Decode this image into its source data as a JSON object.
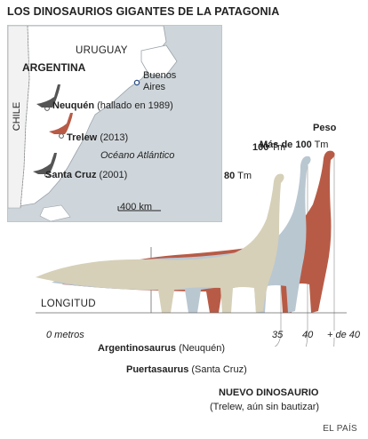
{
  "title": "LOS DINOSAURIOS GIGANTES DE LA PATAGONIA",
  "map": {
    "labels": {
      "uruguay": "URUGUAY",
      "argentina": "ARGENTINA",
      "buenos_aires_1": "Buenos",
      "buenos_aires_2": "Aires",
      "chile": "CHILE",
      "neuquen": "Neuquén",
      "neuquen_note": "(hallado en 1989)",
      "trelew": "Trelew",
      "trelew_note": "(2013)",
      "ocean_1": "Océano",
      "ocean_2": "Atlántico",
      "santa_cruz": "Santa Cruz",
      "santa_cruz_note": "(2001)",
      "scale": "400 km"
    }
  },
  "weights": {
    "header": "Peso",
    "max_prefix": "Más de",
    "max_value": "100",
    "max_unit": "Tm",
    "mid_value": "100",
    "mid_unit": "Tm",
    "low_value": "80",
    "low_unit": "Tm"
  },
  "length": {
    "label": "LONGITUD",
    "zero": "0 metros",
    "v35": "35",
    "v40": "40",
    "v40plus": "+ de 40"
  },
  "dinosaurs": [
    {
      "name": "Argentinosaurus",
      "detail": "(Neuquén)",
      "color": "#d6d0b8"
    },
    {
      "name": "Puertasaurus",
      "detail": "(Santa Cruz)",
      "color": "#b9c7d1"
    },
    {
      "name": "NUEVO DINOSAURIO",
      "detail": "(Trelew, aún sin bautizar)",
      "color": "#b85b46"
    }
  ],
  "credit": "EL PAÍS"
}
